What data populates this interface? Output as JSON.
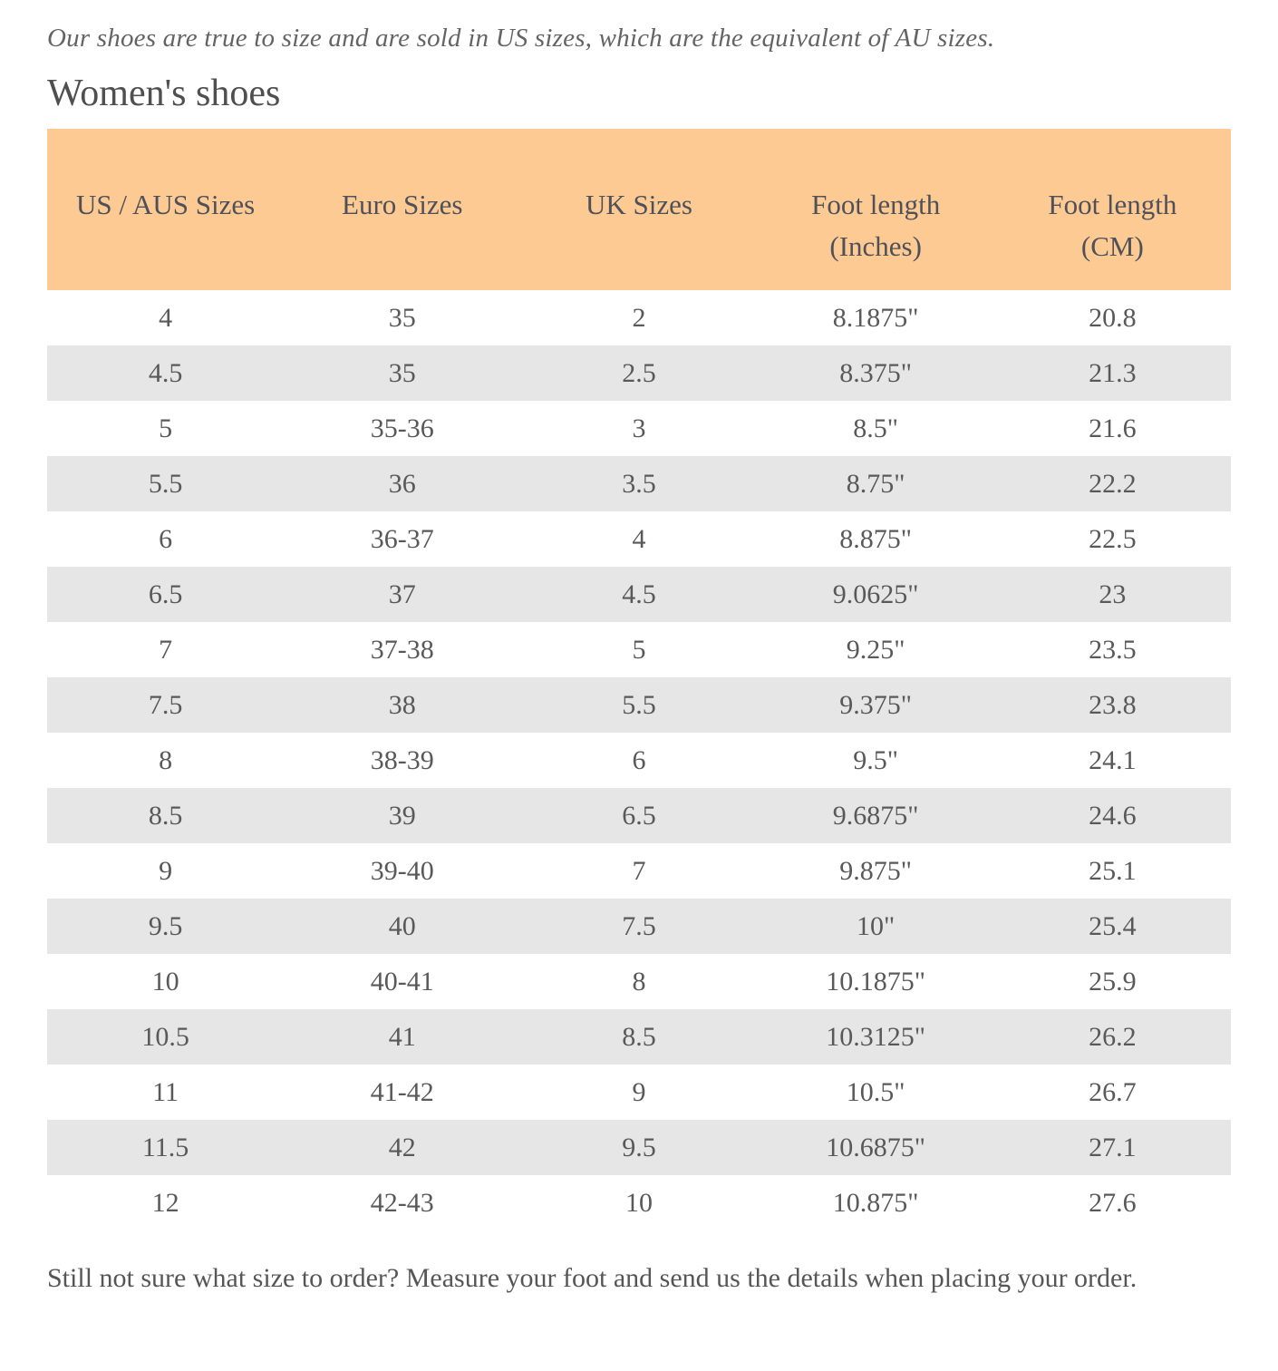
{
  "page": {
    "intro": "Our shoes are true to size and are sold in US sizes, which are the equivalent of AU sizes.",
    "heading": "Women's shoes",
    "footer_note": "Still not sure what size to order? Measure your foot and send us the details when placing your order."
  },
  "colors": {
    "table_header_bg": "#fdca94",
    "row_alt_bg": "#e6e6e6",
    "body_text": "#595959"
  },
  "size_table": {
    "columns": [
      {
        "line1": "US / AUS Sizes",
        "line2": ""
      },
      {
        "line1": "Euro Sizes",
        "line2": ""
      },
      {
        "line1": "UK Sizes",
        "line2": ""
      },
      {
        "line1": "Foot length",
        "line2": "(Inches)"
      },
      {
        "line1": "Foot length",
        "line2": "(CM)"
      }
    ],
    "rows": [
      [
        "4",
        "35",
        "2",
        "8.1875\"",
        "20.8"
      ],
      [
        "4.5",
        "35",
        "2.5",
        "8.375\"",
        "21.3"
      ],
      [
        "5",
        "35-36",
        "3",
        "8.5\"",
        "21.6"
      ],
      [
        "5.5",
        "36",
        "3.5",
        "8.75\"",
        "22.2"
      ],
      [
        "6",
        "36-37",
        "4",
        "8.875\"",
        "22.5"
      ],
      [
        "6.5",
        "37",
        "4.5",
        "9.0625\"",
        "23"
      ],
      [
        "7",
        "37-38",
        "5",
        "9.25\"",
        "23.5"
      ],
      [
        "7.5",
        "38",
        "5.5",
        "9.375\"",
        "23.8"
      ],
      [
        "8",
        "38-39",
        "6",
        "9.5\"",
        "24.1"
      ],
      [
        "8.5",
        "39",
        "6.5",
        "9.6875\"",
        "24.6"
      ],
      [
        "9",
        "39-40",
        "7",
        "9.875\"",
        "25.1"
      ],
      [
        "9.5",
        "40",
        "7.5",
        "10\"",
        "25.4"
      ],
      [
        "10",
        "40-41",
        "8",
        "10.1875\"",
        "25.9"
      ],
      [
        "10.5",
        "41",
        "8.5",
        "10.3125\"",
        "26.2"
      ],
      [
        "11",
        "41-42",
        "9",
        "10.5\"",
        "26.7"
      ],
      [
        "11.5",
        "42",
        "9.5",
        "10.6875\"",
        "27.1"
      ],
      [
        "12",
        "42-43",
        "10",
        "10.875\"",
        "27.6"
      ]
    ]
  }
}
